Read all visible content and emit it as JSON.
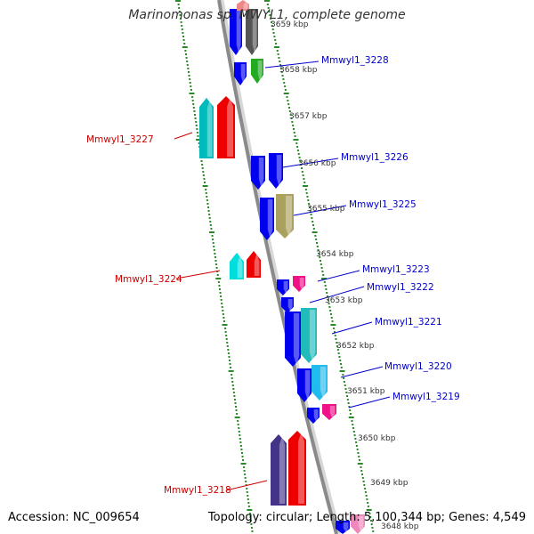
{
  "title": "Marinomonas sp. MWYL1, complete genome",
  "accession": "Accession: NC_009654",
  "summary": "Topology: circular; Length: 5,100,344 bp; Genes: 4,549",
  "colors": {
    "backbone": "#8a8a8a",
    "ticks": "#2a8a2a",
    "label_forward": "#cc0000",
    "label_reverse": "#0000cc",
    "scale_text": "#333333"
  },
  "scale_labels": [
    "3659 kbp",
    "3658 kbp",
    "3657 kbp",
    "3656 kbp",
    "3655 kbp",
    "3654 kbp",
    "3653 kbp",
    "3652 kbp",
    "3651 kbp",
    "3650 kbp",
    "3649 kbp",
    "3648 kbp"
  ],
  "gene_labels": [
    {
      "text": "Mmwyl1_3228",
      "side": "right"
    },
    {
      "text": "Mmwyl1_3227",
      "side": "left"
    },
    {
      "text": "Mmwyl1_3226",
      "side": "right"
    },
    {
      "text": "Mmwyl1_3225",
      "side": "right"
    },
    {
      "text": "Mmwyl1_3224",
      "side": "left"
    },
    {
      "text": "Mmwyl1_3223",
      "side": "right"
    },
    {
      "text": "Mmwyl1_3222",
      "side": "right"
    },
    {
      "text": "Mmwyl1_3221",
      "side": "right"
    },
    {
      "text": "Mmwyl1_3220",
      "side": "right"
    },
    {
      "text": "Mmwyl1_3219",
      "side": "right"
    },
    {
      "text": "Mmwyl1_3218",
      "side": "left"
    }
  ],
  "genes": [
    {
      "name": "gene-top-blue",
      "color": "#0000ee",
      "strand": "reverse"
    },
    {
      "name": "gene-top-gray",
      "color": "#555555",
      "strand": "reverse"
    },
    {
      "name": "gene-top-pink",
      "color": "#ee8888",
      "strand": "forward"
    },
    {
      "name": "gene-3658-blue",
      "color": "#0000ee",
      "strand": "reverse"
    },
    {
      "name": "gene-3228",
      "color": "#22aa22",
      "strand": "reverse"
    },
    {
      "name": "gene-3227-cyan",
      "color": "#00bbbb",
      "strand": "forward"
    },
    {
      "name": "gene-3227",
      "color": "#ee0000",
      "strand": "forward"
    },
    {
      "name": "gene-3226-blue",
      "color": "#0000ee",
      "strand": "reverse"
    },
    {
      "name": "gene-3226",
      "color": "#0000ee",
      "strand": "reverse"
    },
    {
      "name": "gene-3225-blue",
      "color": "#0000ee",
      "strand": "reverse"
    },
    {
      "name": "gene-3225",
      "color": "#aaa060",
      "strand": "reverse"
    },
    {
      "name": "gene-3224-cyan",
      "color": "#00dddd",
      "strand": "forward"
    },
    {
      "name": "gene-3224",
      "color": "#ee0000",
      "strand": "forward"
    },
    {
      "name": "gene-3223-blue",
      "color": "#0000ee",
      "strand": "reverse"
    },
    {
      "name": "gene-3223",
      "color": "#ee1188",
      "strand": "reverse"
    },
    {
      "name": "gene-3222",
      "color": "#0000ee",
      "strand": "reverse"
    },
    {
      "name": "gene-3221-blue",
      "color": "#0000ee",
      "strand": "reverse"
    },
    {
      "name": "gene-3221",
      "color": "#22bbbb",
      "strand": "reverse"
    },
    {
      "name": "gene-3220-blue",
      "color": "#0000ee",
      "strand": "reverse"
    },
    {
      "name": "gene-3220",
      "color": "#22bbee",
      "strand": "reverse"
    },
    {
      "name": "gene-3219-blue",
      "color": "#0000ee",
      "strand": "reverse"
    },
    {
      "name": "gene-3219",
      "color": "#ee1188",
      "strand": "reverse"
    },
    {
      "name": "gene-3218-purple",
      "color": "#443388",
      "strand": "forward"
    },
    {
      "name": "gene-3218",
      "color": "#ee0000",
      "strand": "forward"
    },
    {
      "name": "gene-bottom-blue",
      "color": "#0000ee",
      "strand": "reverse"
    },
    {
      "name": "gene-bottom-pink",
      "color": "#ee88bb",
      "strand": "reverse"
    }
  ]
}
